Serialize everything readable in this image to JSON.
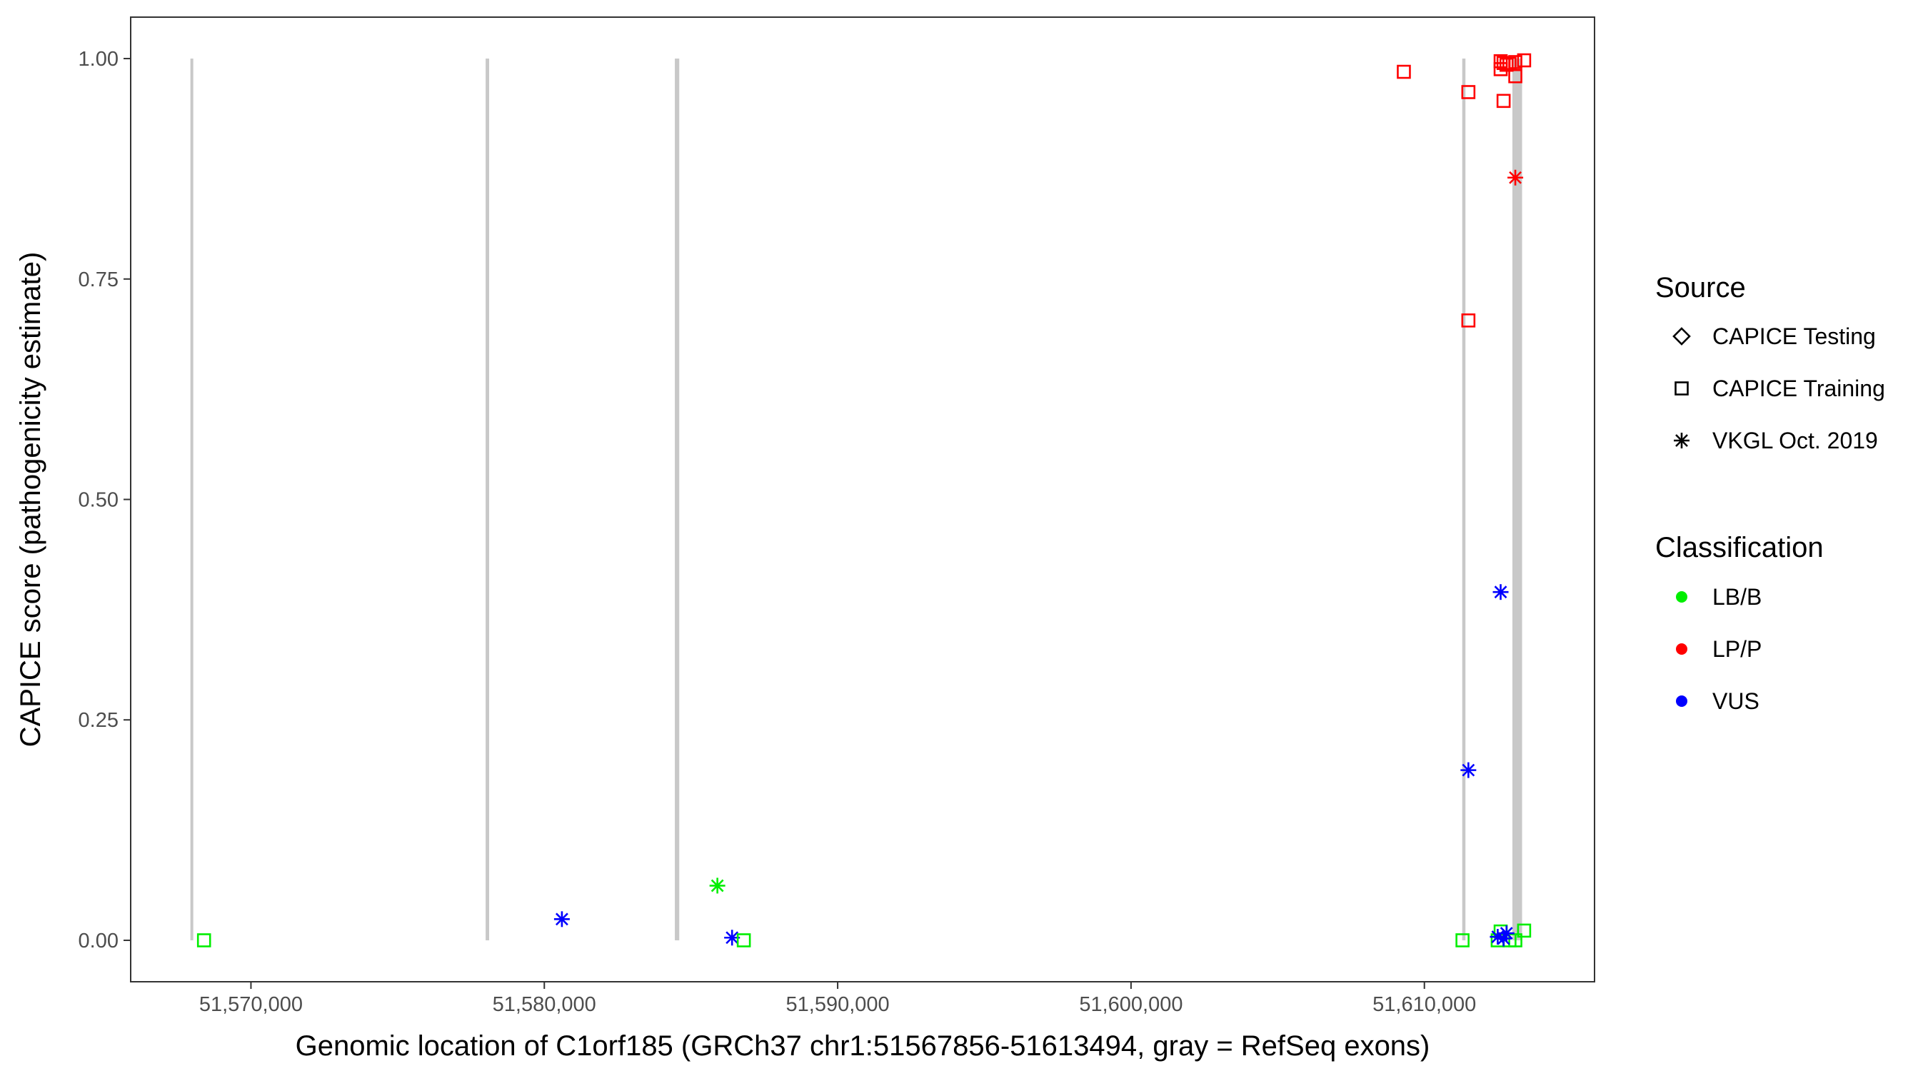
{
  "chart_data": {
    "type": "scatter",
    "title": "",
    "xlabel": "Genomic location of C1orf185 (GRCh37 chr1:51567856-51613494, gray = RefSeq exons)",
    "ylabel": "CAPICE score (pathogenicity estimate)",
    "xlim": [
      51565900,
      51615800
    ],
    "ylim": [
      -0.047,
      1.047
    ],
    "x_ticks": [
      51570000,
      51580000,
      51590000,
      51600000,
      51610000
    ],
    "x_tick_labels": [
      "51,570,000",
      "51,580,000",
      "51,590,000",
      "51,600,000",
      "51,610,000"
    ],
    "y_ticks": [
      0,
      0.25,
      0.5,
      0.75,
      1
    ],
    "y_tick_labels": [
      "0.00",
      "0.25",
      "0.50",
      "0.75",
      "1.00"
    ],
    "grid": false,
    "exons": [
      {
        "start": 51567960,
        "end": 51568010
      },
      {
        "start": 51578000,
        "end": 51578120
      },
      {
        "start": 51584450,
        "end": 51584600
      },
      {
        "start": 51611290,
        "end": 51611400
      },
      {
        "start": 51613000,
        "end": 51613330
      }
    ],
    "legend": {
      "placement": "right",
      "source_title": "Source",
      "source_items": [
        {
          "label": "CAPICE Testing",
          "shape": "diamond"
        },
        {
          "label": "CAPICE Training",
          "shape": "square"
        },
        {
          "label": "VKGL Oct. 2019",
          "shape": "asterisk"
        }
      ],
      "class_title": "Classification",
      "class_items": [
        {
          "label": "LB/B",
          "color": "#00ee00"
        },
        {
          "label": "LP/P",
          "color": "#ff0000"
        },
        {
          "label": "VUS",
          "color": "#0000ff"
        }
      ]
    },
    "points": [
      {
        "x": 51568400,
        "y": 0.0,
        "source": "CAPICE Training",
        "cls": "LB/B"
      },
      {
        "x": 51580600,
        "y": 0.024,
        "source": "VKGL Oct. 2019",
        "cls": "VUS"
      },
      {
        "x": 51585900,
        "y": 0.062,
        "source": "VKGL Oct. 2019",
        "cls": "LB/B"
      },
      {
        "x": 51586400,
        "y": 0.003,
        "source": "VKGL Oct. 2019",
        "cls": "VUS"
      },
      {
        "x": 51586800,
        "y": 0.0,
        "source": "CAPICE Training",
        "cls": "LB/B"
      },
      {
        "x": 51609300,
        "y": 0.985,
        "source": "CAPICE Training",
        "cls": "LP/P"
      },
      {
        "x": 51611500,
        "y": 0.962,
        "source": "CAPICE Training",
        "cls": "LP/P"
      },
      {
        "x": 51611500,
        "y": 0.703,
        "source": "CAPICE Training",
        "cls": "LP/P"
      },
      {
        "x": 51611500,
        "y": 0.193,
        "source": "VKGL Oct. 2019",
        "cls": "VUS"
      },
      {
        "x": 51611300,
        "y": 0.0,
        "source": "CAPICE Training",
        "cls": "LB/B"
      },
      {
        "x": 51612600,
        "y": 0.997,
        "source": "CAPICE Training",
        "cls": "LP/P"
      },
      {
        "x": 51612700,
        "y": 0.995,
        "source": "CAPICE Training",
        "cls": "LP/P"
      },
      {
        "x": 51612800,
        "y": 0.993,
        "source": "CAPICE Training",
        "cls": "LP/P"
      },
      {
        "x": 51612600,
        "y": 0.988,
        "source": "CAPICE Training",
        "cls": "LP/P"
      },
      {
        "x": 51612900,
        "y": 0.994,
        "source": "CAPICE Training",
        "cls": "LP/P"
      },
      {
        "x": 51613100,
        "y": 0.996,
        "source": "CAPICE Training",
        "cls": "LP/P"
      },
      {
        "x": 51613400,
        "y": 0.998,
        "source": "CAPICE Training",
        "cls": "LP/P"
      },
      {
        "x": 51613100,
        "y": 0.98,
        "source": "CAPICE Training",
        "cls": "LP/P"
      },
      {
        "x": 51612700,
        "y": 0.952,
        "source": "CAPICE Training",
        "cls": "LP/P"
      },
      {
        "x": 51613100,
        "y": 0.865,
        "source": "VKGL Oct. 2019",
        "cls": "LP/P"
      },
      {
        "x": 51612600,
        "y": 0.395,
        "source": "VKGL Oct. 2019",
        "cls": "VUS"
      },
      {
        "x": 51612600,
        "y": 0.01,
        "source": "CAPICE Training",
        "cls": "LB/B"
      },
      {
        "x": 51612500,
        "y": 0.0,
        "source": "CAPICE Training",
        "cls": "LB/B"
      },
      {
        "x": 51612900,
        "y": 0.0,
        "source": "CAPICE Training",
        "cls": "LB/B"
      },
      {
        "x": 51613100,
        "y": 0.0,
        "source": "CAPICE Training",
        "cls": "LB/B"
      },
      {
        "x": 51613400,
        "y": 0.011,
        "source": "CAPICE Training",
        "cls": "LB/B"
      },
      {
        "x": 51612800,
        "y": 0.008,
        "source": "VKGL Oct. 2019",
        "cls": "VUS"
      },
      {
        "x": 51612500,
        "y": 0.004,
        "source": "VKGL Oct. 2019",
        "cls": "VUS"
      },
      {
        "x": 51612700,
        "y": 0.002,
        "source": "VKGL Oct. 2019",
        "cls": "VUS"
      }
    ]
  }
}
